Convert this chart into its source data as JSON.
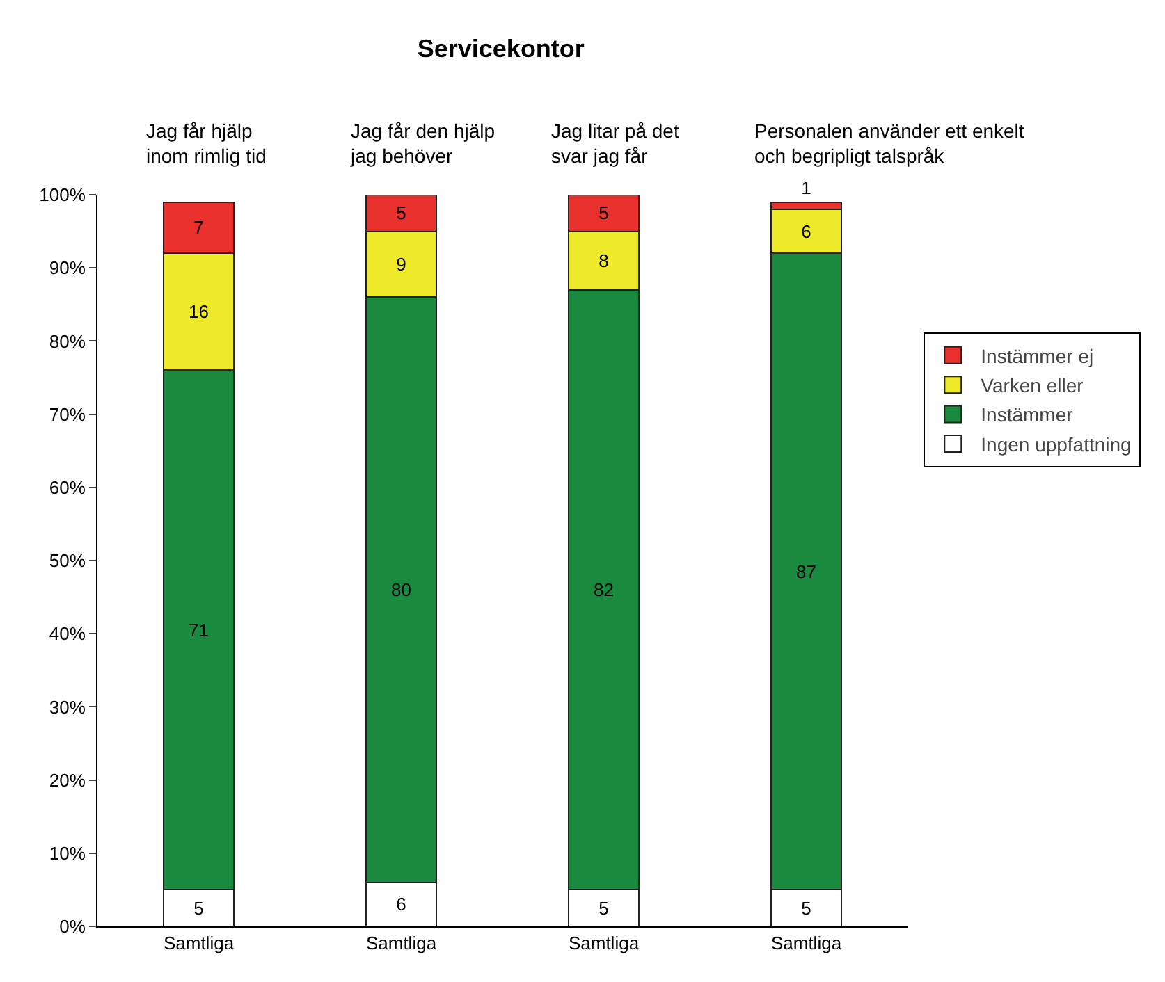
{
  "chart_data": {
    "type": "bar",
    "title": "Servicekontor",
    "stacked": true,
    "data_labels": true,
    "legend": "right",
    "grid": false,
    "categories": [
      "Samtliga",
      "Samtliga",
      "Samtliga",
      "Samtliga"
    ],
    "ylim": [
      0,
      100
    ],
    "yticks": [
      {
        "value": 0,
        "label": "0%"
      },
      {
        "value": 10,
        "label": "10%"
      },
      {
        "value": 20,
        "label": "20%"
      },
      {
        "value": 30,
        "label": "30%"
      },
      {
        "value": 40,
        "label": "40%"
      },
      {
        "value": 50,
        "label": "50%"
      },
      {
        "value": 60,
        "label": "60%"
      },
      {
        "value": 70,
        "label": "70%"
      },
      {
        "value": 80,
        "label": "80%"
      },
      {
        "value": 90,
        "label": "90%"
      },
      {
        "value": 100,
        "label": "100%"
      }
    ],
    "annotations": [
      "Jag får hjälp\ninom rimlig tid",
      "Jag får den hjälp\njag behöver",
      "Jag litar på det\nsvar jag får",
      "Personalen använder ett enkelt\noch begripligt talspråk"
    ],
    "series": [
      {
        "name": "Ingen uppfattning",
        "color": "#ffffff",
        "values": [
          5,
          6,
          5,
          5
        ]
      },
      {
        "name": "Instämmer",
        "color": "#1a8a3e",
        "values": [
          71,
          80,
          82,
          87
        ]
      },
      {
        "name": "Varken eller",
        "color": "#eeea2a",
        "values": [
          16,
          9,
          8,
          6
        ]
      },
      {
        "name": "Instämmer ej",
        "color": "#e8302d",
        "values": [
          7,
          5,
          5,
          1
        ]
      }
    ]
  }
}
